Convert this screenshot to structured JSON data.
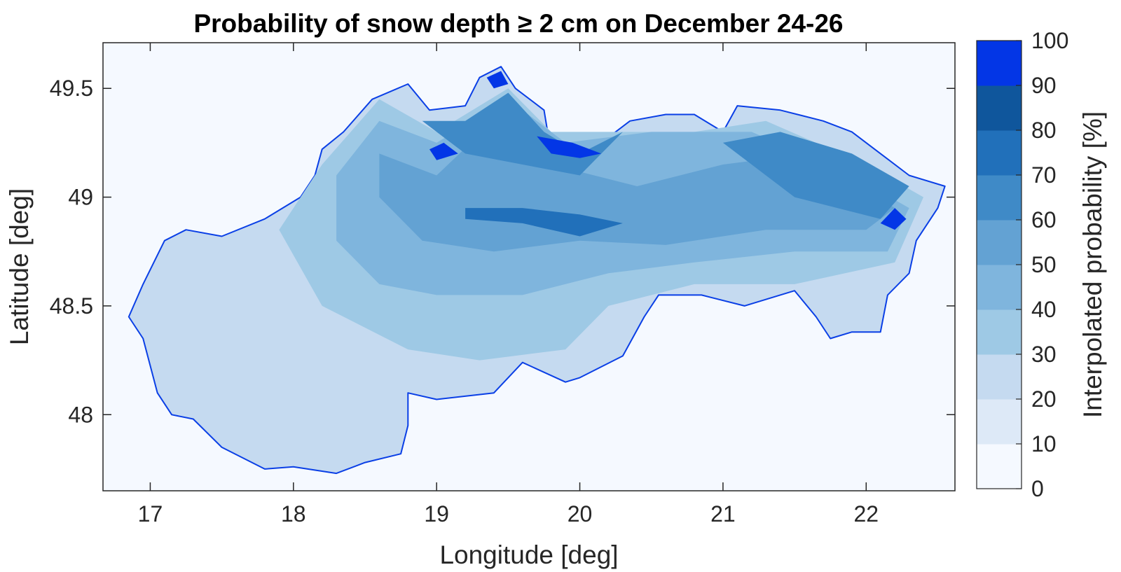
{
  "chart_data": {
    "type": "heatmap",
    "title": "Probability of snow depth ≥ 2 cm on December 24-26",
    "xlabel": "Longitude [deg]",
    "ylabel": "Latitude [deg]",
    "xlim": [
      16.67,
      22.62
    ],
    "ylim": [
      47.65,
      49.71
    ],
    "xticks": [
      {
        "value": 17,
        "label": "17"
      },
      {
        "value": 18,
        "label": "18"
      },
      {
        "value": 19,
        "label": "19"
      },
      {
        "value": 20,
        "label": "20"
      },
      {
        "value": 21,
        "label": "21"
      },
      {
        "value": 22,
        "label": "22"
      }
    ],
    "yticks": [
      {
        "value": 48,
        "label": "48"
      },
      {
        "value": 48.5,
        "label": "48.5"
      },
      {
        "value": 49,
        "label": "49"
      },
      {
        "value": 49.5,
        "label": "49.5"
      }
    ],
    "grid": false,
    "colorbar": {
      "label": "Interpolated probability [%]",
      "range": [
        0,
        100
      ],
      "ticks": [
        "0",
        "10",
        "20",
        "30",
        "40",
        "50",
        "60",
        "70",
        "80",
        "90",
        "100"
      ],
      "colors": [
        "#f5f9ff",
        "#dde9f7",
        "#c5daf0",
        "#9ec9e5",
        "#7fb5dd",
        "#63a2d3",
        "#3f8ac7",
        "#2170ba",
        "#0f569c",
        "#0336e6"
      ]
    },
    "border_color": "#0a3fe6",
    "regions": [
      {
        "name": "outline",
        "level": 20,
        "points": [
          [
            17.1,
            48.8
          ],
          [
            17.25,
            48.85
          ],
          [
            17.5,
            48.82
          ],
          [
            17.8,
            48.9
          ],
          [
            18.05,
            49.0
          ],
          [
            18.15,
            49.1
          ],
          [
            18.2,
            49.22
          ],
          [
            18.35,
            49.3
          ],
          [
            18.55,
            49.45
          ],
          [
            18.8,
            49.52
          ],
          [
            18.95,
            49.4
          ],
          [
            19.2,
            49.42
          ],
          [
            19.3,
            49.55
          ],
          [
            19.45,
            49.6
          ],
          [
            19.55,
            49.5
          ],
          [
            19.75,
            49.4
          ],
          [
            19.8,
            49.2
          ],
          [
            20.0,
            49.18
          ],
          [
            20.15,
            49.25
          ],
          [
            20.35,
            49.35
          ],
          [
            20.6,
            49.38
          ],
          [
            20.8,
            49.38
          ],
          [
            21.0,
            49.3
          ],
          [
            21.1,
            49.42
          ],
          [
            21.4,
            49.4
          ],
          [
            21.7,
            49.35
          ],
          [
            21.9,
            49.3
          ],
          [
            22.1,
            49.2
          ],
          [
            22.3,
            49.1
          ],
          [
            22.55,
            49.05
          ],
          [
            22.5,
            48.95
          ],
          [
            22.35,
            48.8
          ],
          [
            22.3,
            48.65
          ],
          [
            22.15,
            48.55
          ],
          [
            22.1,
            48.38
          ],
          [
            21.9,
            48.38
          ],
          [
            21.75,
            48.35
          ],
          [
            21.65,
            48.45
          ],
          [
            21.5,
            48.57
          ],
          [
            21.15,
            48.5
          ],
          [
            20.85,
            48.55
          ],
          [
            20.55,
            48.55
          ],
          [
            20.45,
            48.45
          ],
          [
            20.3,
            48.27
          ],
          [
            20.0,
            48.17
          ],
          [
            19.9,
            48.15
          ],
          [
            19.6,
            48.24
          ],
          [
            19.4,
            48.1
          ],
          [
            19.0,
            48.07
          ],
          [
            18.8,
            48.1
          ],
          [
            18.8,
            47.95
          ],
          [
            18.75,
            47.82
          ],
          [
            18.5,
            47.78
          ],
          [
            18.3,
            47.73
          ],
          [
            18.0,
            47.76
          ],
          [
            17.8,
            47.75
          ],
          [
            17.5,
            47.85
          ],
          [
            17.3,
            47.98
          ],
          [
            17.15,
            48.0
          ],
          [
            17.05,
            48.1
          ],
          [
            16.95,
            48.35
          ],
          [
            16.85,
            48.45
          ],
          [
            16.95,
            48.6
          ],
          [
            17.1,
            48.8
          ]
        ]
      },
      {
        "name": "central-north",
        "level": 30,
        "points": [
          [
            17.9,
            48.85
          ],
          [
            18.2,
            49.15
          ],
          [
            18.6,
            49.45
          ],
          [
            19.0,
            49.3
          ],
          [
            19.5,
            49.5
          ],
          [
            19.8,
            49.3
          ],
          [
            20.3,
            49.3
          ],
          [
            20.8,
            49.3
          ],
          [
            21.3,
            49.35
          ],
          [
            22.0,
            49.15
          ],
          [
            22.4,
            49.0
          ],
          [
            22.2,
            48.7
          ],
          [
            21.5,
            48.6
          ],
          [
            20.8,
            48.6
          ],
          [
            20.2,
            48.5
          ],
          [
            19.9,
            48.3
          ],
          [
            19.3,
            48.25
          ],
          [
            18.8,
            48.3
          ],
          [
            18.5,
            48.4
          ],
          [
            18.2,
            48.5
          ],
          [
            17.9,
            48.85
          ]
        ]
      },
      {
        "name": "band-40",
        "level": 40,
        "points": [
          [
            18.3,
            49.1
          ],
          [
            18.6,
            49.35
          ],
          [
            19.0,
            49.25
          ],
          [
            19.5,
            49.45
          ],
          [
            19.9,
            49.25
          ],
          [
            20.5,
            49.3
          ],
          [
            21.2,
            49.3
          ],
          [
            21.9,
            49.1
          ],
          [
            22.3,
            48.95
          ],
          [
            22.15,
            48.75
          ],
          [
            21.5,
            48.75
          ],
          [
            20.8,
            48.7
          ],
          [
            20.2,
            48.65
          ],
          [
            19.6,
            48.55
          ],
          [
            19.0,
            48.55
          ],
          [
            18.6,
            48.6
          ],
          [
            18.3,
            48.8
          ],
          [
            18.3,
            49.1
          ]
        ]
      },
      {
        "name": "band-50",
        "level": 50,
        "points": [
          [
            18.6,
            49.2
          ],
          [
            19.0,
            49.1
          ],
          [
            19.4,
            49.35
          ],
          [
            19.8,
            49.15
          ],
          [
            20.4,
            49.05
          ],
          [
            21.0,
            49.15
          ],
          [
            21.6,
            49.2
          ],
          [
            22.2,
            48.95
          ],
          [
            22.0,
            48.85
          ],
          [
            21.3,
            48.85
          ],
          [
            20.6,
            48.78
          ],
          [
            20.0,
            48.8
          ],
          [
            19.4,
            48.75
          ],
          [
            18.9,
            48.8
          ],
          [
            18.6,
            49.0
          ],
          [
            18.6,
            49.2
          ]
        ]
      },
      {
        "name": "band-60-north",
        "level": 60,
        "points": [
          [
            18.9,
            49.35
          ],
          [
            19.2,
            49.35
          ],
          [
            19.5,
            49.48
          ],
          [
            19.75,
            49.3
          ],
          [
            20.0,
            49.2
          ],
          [
            20.3,
            49.3
          ],
          [
            20.0,
            49.1
          ],
          [
            19.6,
            49.15
          ],
          [
            19.2,
            49.2
          ],
          [
            18.9,
            49.35
          ]
        ]
      },
      {
        "name": "band-60-east",
        "level": 60,
        "points": [
          [
            21.0,
            49.25
          ],
          [
            21.4,
            49.3
          ],
          [
            21.9,
            49.2
          ],
          [
            22.3,
            49.05
          ],
          [
            22.1,
            48.9
          ],
          [
            21.5,
            49.0
          ],
          [
            21.0,
            49.25
          ]
        ]
      },
      {
        "name": "low-tatras",
        "level": 70,
        "points": [
          [
            19.2,
            48.95
          ],
          [
            19.6,
            48.95
          ],
          [
            20.0,
            48.92
          ],
          [
            20.3,
            48.88
          ],
          [
            20.0,
            48.82
          ],
          [
            19.6,
            48.88
          ],
          [
            19.2,
            48.9
          ],
          [
            19.2,
            48.95
          ]
        ]
      },
      {
        "name": "peak-high-tatras",
        "level": 100,
        "points": [
          [
            19.7,
            49.28
          ],
          [
            19.8,
            49.2
          ],
          [
            20.0,
            49.18
          ],
          [
            20.15,
            49.2
          ],
          [
            19.95,
            49.25
          ],
          [
            19.7,
            49.28
          ]
        ]
      },
      {
        "name": "peak-fatra",
        "level": 100,
        "points": [
          [
            18.95,
            49.22
          ],
          [
            19.05,
            49.25
          ],
          [
            19.15,
            49.2
          ],
          [
            19.0,
            49.17
          ],
          [
            18.95,
            49.22
          ]
        ]
      },
      {
        "name": "peak-vihorlat",
        "level": 100,
        "points": [
          [
            22.1,
            48.88
          ],
          [
            22.2,
            48.95
          ],
          [
            22.28,
            48.9
          ],
          [
            22.2,
            48.85
          ],
          [
            22.1,
            48.88
          ]
        ]
      },
      {
        "name": "peak-babia",
        "level": 100,
        "points": [
          [
            19.35,
            49.55
          ],
          [
            19.45,
            49.58
          ],
          [
            19.5,
            49.52
          ],
          [
            19.4,
            49.5
          ],
          [
            19.35,
            49.55
          ]
        ]
      }
    ]
  }
}
